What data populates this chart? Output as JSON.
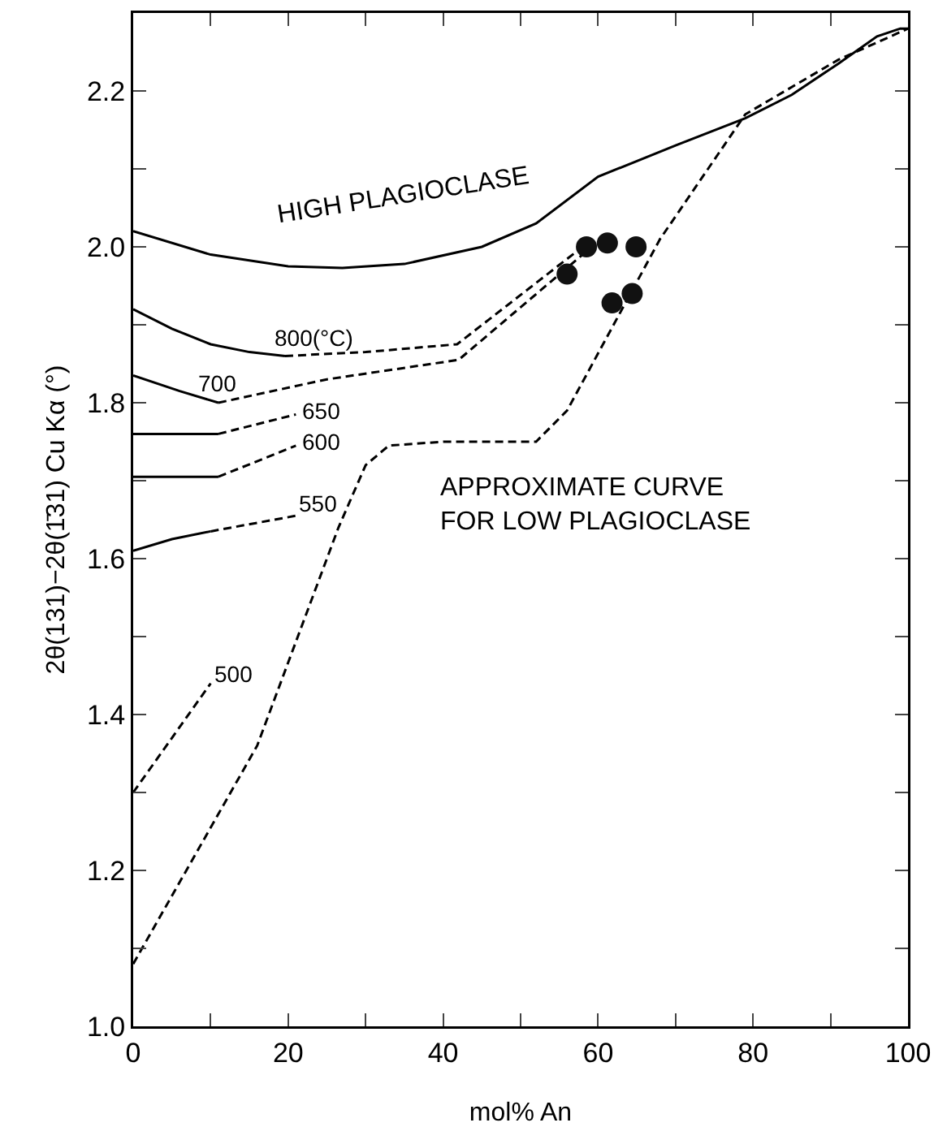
{
  "chart_data": {
    "type": "line",
    "xlabel": "mol% An",
    "ylabel": "2θ(131)−2θ(1̄31) Cu Kα (°)",
    "xlim": [
      0,
      100
    ],
    "ylim": [
      1.0,
      2.3
    ],
    "xticks": [
      0,
      {
        "value": 10,
        "label": null
      },
      20,
      {
        "value": 30,
        "label": null
      },
      40,
      {
        "value": 50,
        "label": null
      },
      60,
      {
        "value": 70,
        "label": null
      },
      80,
      {
        "value": 90,
        "label": null
      },
      100
    ],
    "yticks": [
      {
        "value": 1.0,
        "label": "1.0"
      },
      {
        "value": 1.1,
        "label": null
      },
      1.2,
      {
        "value": 1.3,
        "label": null
      },
      1.4,
      {
        "value": 1.5,
        "label": null
      },
      1.6,
      {
        "value": 1.7,
        "label": null
      },
      1.8,
      {
        "value": 1.9,
        "label": null
      },
      {
        "value": 2.0,
        "label": "2.0"
      },
      {
        "value": 2.1,
        "label": null
      },
      2.2
    ],
    "grid": false,
    "legend": false,
    "marker": "none",
    "series": [
      {
        "name": "HIGH PLAGIOCLASE",
        "color": "#000000",
        "line_style": "solid",
        "x": [
          0,
          10,
          20,
          27,
          35,
          45,
          52,
          60,
          70,
          79,
          85,
          91,
          96,
          99,
          100
        ],
        "values": [
          2.02,
          1.99,
          1.975,
          1.973,
          1.978,
          2.0,
          2.03,
          2.09,
          2.13,
          2.165,
          2.195,
          2.235,
          2.27,
          2.28,
          2.28
        ]
      },
      {
        "name": "APPROXIMATE CURVE\nFOR LOW PLAGIOCLASE",
        "color": "#000000",
        "line_style": "dashed",
        "x": [
          0,
          16,
          26.5,
          30,
          33,
          40,
          52,
          56,
          62,
          68,
          79,
          91,
          100
        ],
        "values": [
          1.08,
          1.36,
          1.64,
          1.72,
          1.745,
          1.75,
          1.75,
          1.79,
          1.9,
          2.01,
          2.17,
          2.24,
          2.28
        ]
      },
      {
        "color": "#000000",
        "line_style": "solid",
        "x": [
          0,
          5,
          10,
          15,
          19.6
        ],
        "values": [
          1.92,
          1.895,
          1.875,
          1.865,
          1.86
        ]
      },
      {
        "name": "800(°C)",
        "color": "#000000",
        "line_style": "dashed",
        "x": [
          19.6,
          30,
          41.8,
          58
        ],
        "values": [
          1.86,
          1.865,
          1.875,
          2.0
        ]
      },
      {
        "color": "#000000",
        "line_style": "solid",
        "x": [
          0,
          6,
          11
        ],
        "values": [
          1.835,
          1.815,
          1.8
        ]
      },
      {
        "name": "700",
        "color": "#000000",
        "line_style": "dashed",
        "x": [
          11,
          25,
          42,
          58
        ],
        "values": [
          1.8,
          1.83,
          1.855,
          1.99
        ]
      },
      {
        "color": "#000000",
        "line_style": "solid",
        "x": [
          0,
          11
        ],
        "values": [
          1.76,
          1.76
        ]
      },
      {
        "name": "650",
        "color": "#000000",
        "line_style": "dashed",
        "x": [
          11,
          21
        ],
        "values": [
          1.76,
          1.785
        ]
      },
      {
        "color": "#000000",
        "line_style": "solid",
        "x": [
          0,
          11
        ],
        "values": [
          1.705,
          1.705
        ]
      },
      {
        "name": "600",
        "color": "#000000",
        "line_style": "dashed",
        "x": [
          11,
          21
        ],
        "values": [
          1.705,
          1.745
        ]
      },
      {
        "color": "#000000",
        "line_style": "solid",
        "x": [
          0,
          5,
          10
        ],
        "values": [
          1.61,
          1.625,
          1.635
        ]
      },
      {
        "name": "550",
        "color": "#000000",
        "line_style": "dashed",
        "x": [
          10,
          21
        ],
        "values": [
          1.635,
          1.655
        ]
      },
      {
        "name": "500",
        "color": "#000000",
        "line_style": "dashed",
        "x": [
          0,
          10
        ],
        "values": [
          1.3,
          1.44
        ]
      },
      {
        "type": "scatter",
        "color": "#111111",
        "marker": "circle",
        "x": [
          56,
          58.5,
          61.2,
          64.9,
          61.8,
          64.4
        ],
        "values": [
          1.965,
          2.0,
          2.005,
          2.0,
          1.928,
          1.94
        ]
      }
    ]
  }
}
